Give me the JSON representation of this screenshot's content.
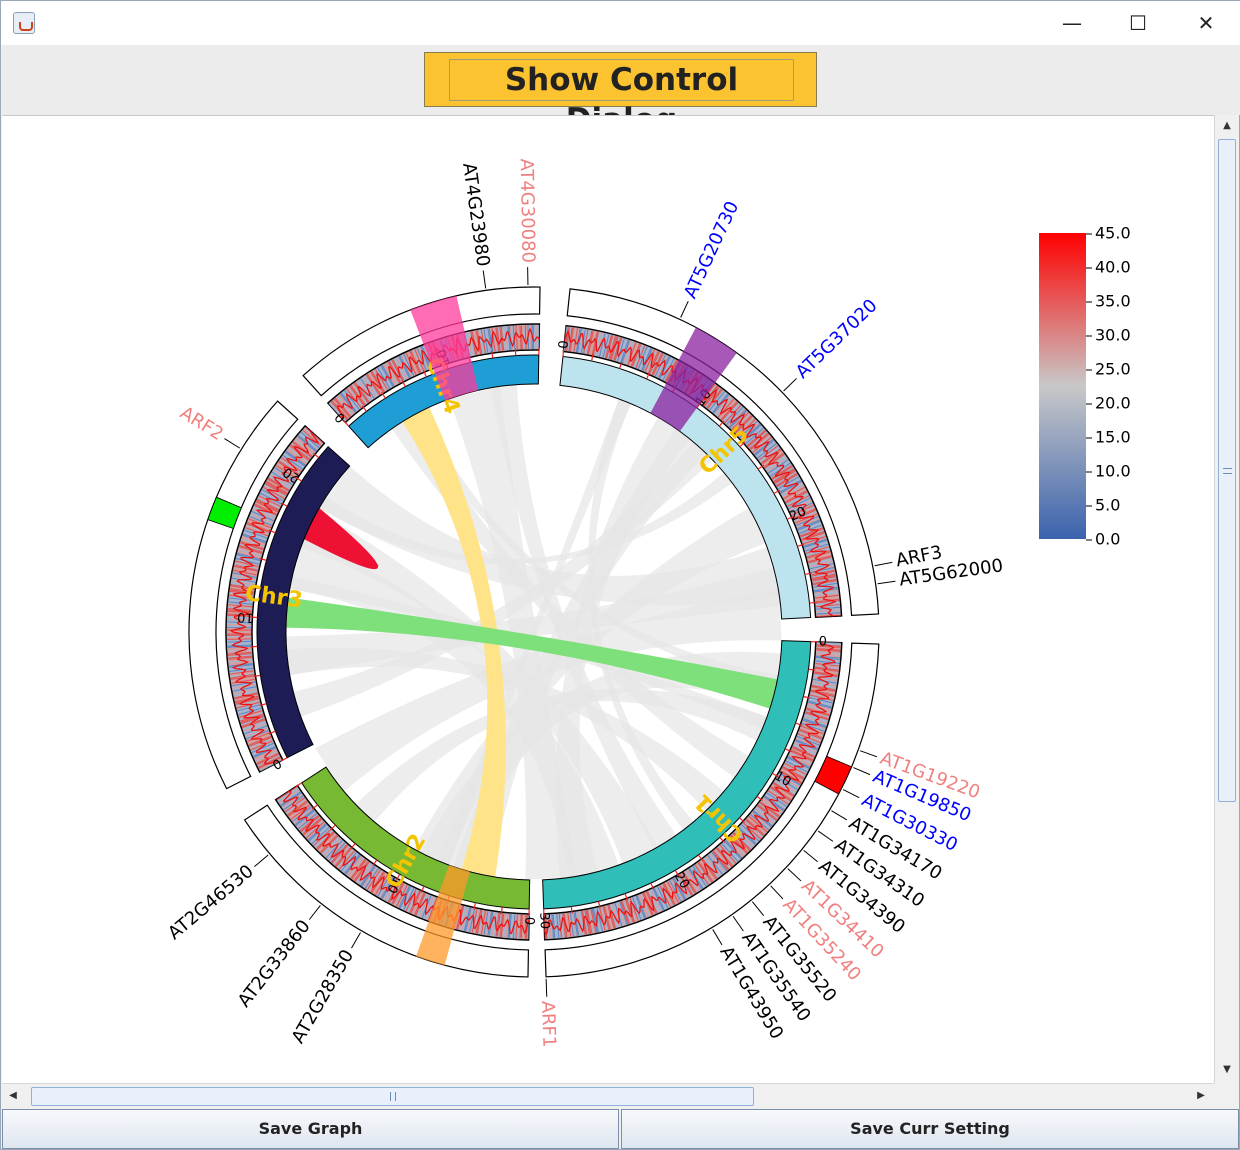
{
  "window": {
    "minimize_glyph": "—",
    "maximize_glyph": "☐",
    "close_glyph": "✕",
    "icon": "java-cup-icon"
  },
  "toolbar": {
    "show_control_label": "Show Control Dialog"
  },
  "buttons": {
    "save_graph_label": "Save Graph",
    "save_setting_label": "Save Curr Setting"
  },
  "scroll": {
    "up": "▲",
    "down": "▼",
    "left": "◀",
    "right": "▶"
  },
  "chart_data": {
    "type": "circos",
    "colorbar": {
      "ticks": [
        "45.0",
        "40.0",
        "35.0",
        "30.0",
        "25.0",
        "20.0",
        "15.0",
        "10.0",
        "5.0",
        "0.0"
      ],
      "min": 0,
      "max": 45,
      "colors": [
        "#3a62ad",
        "#c8c8c8",
        "#ff0000"
      ]
    },
    "chromosomes": [
      {
        "name": "Chr1",
        "length": 30,
        "color": "#2fbfb8",
        "ticks": [
          "0",
          "10",
          "20",
          "30"
        ]
      },
      {
        "name": "Chr2",
        "length": 20,
        "color": "#78b933",
        "ticks": [
          "0",
          "10"
        ]
      },
      {
        "name": "Chr3",
        "length": 23,
        "color": "#1d1c55",
        "ticks": [
          "0",
          "10",
          "20"
        ]
      },
      {
        "name": "Chr4",
        "length": 18,
        "color": "#1e9ed4",
        "ticks": [
          "0",
          "10"
        ]
      },
      {
        "name": "Chr5",
        "length": 27,
        "color": "#bde3ee",
        "ticks": [
          "0",
          "10",
          "20"
        ]
      }
    ],
    "gene_labels": [
      {
        "text": "AT4G23980",
        "color": "#000000"
      },
      {
        "text": "AT4G30080",
        "color": "#f08080"
      },
      {
        "text": "AT5G20730",
        "color": "#0000ff"
      },
      {
        "text": "AT5G37020",
        "color": "#0000ff"
      },
      {
        "text": "ARF3",
        "color": "#000000"
      },
      {
        "text": "AT5G62000",
        "color": "#000000"
      },
      {
        "text": "AT1G19220",
        "color": "#f08080"
      },
      {
        "text": "AT1G19850",
        "color": "#0000ff"
      },
      {
        "text": "AT1G30330",
        "color": "#0000ff"
      },
      {
        "text": "AT1G34170",
        "color": "#000000"
      },
      {
        "text": "AT1G34310",
        "color": "#000000"
      },
      {
        "text": "AT1G34390",
        "color": "#000000"
      },
      {
        "text": "AT1G34410",
        "color": "#f08080"
      },
      {
        "text": "AT1G35240",
        "color": "#f08080"
      },
      {
        "text": "AT1G35520",
        "color": "#000000"
      },
      {
        "text": "AT1G35540",
        "color": "#000000"
      },
      {
        "text": "AT1G43950",
        "color": "#000000"
      },
      {
        "text": "ARF1",
        "color": "#f08080"
      },
      {
        "text": "AT2G28350",
        "color": "#000000"
      },
      {
        "text": "AT2G33860",
        "color": "#000000"
      },
      {
        "text": "AT2G46530",
        "color": "#000000"
      },
      {
        "text": "ARF2",
        "color": "#f08080"
      }
    ],
    "links": [
      {
        "from": "Chr4",
        "to": "Chr2",
        "color": "#fee388"
      },
      {
        "from": "Chr3",
        "to": "Chr1",
        "color": "#7de07a"
      },
      {
        "from": "Chr3",
        "to": "Chr4",
        "color": "#ee1133"
      }
    ],
    "highlights": [
      {
        "chromosome": "Chr4",
        "color": "#ff3a9c"
      },
      {
        "chromosome": "Chr5",
        "color": "#8b22a0"
      },
      {
        "chromosome": "Chr2",
        "color": "#ff9a2a"
      }
    ],
    "outer_markers": [
      {
        "chromosome": "Chr3",
        "color": "#00ee00"
      },
      {
        "chromosome": "Chr1",
        "color": "#ff0000"
      }
    ]
  }
}
